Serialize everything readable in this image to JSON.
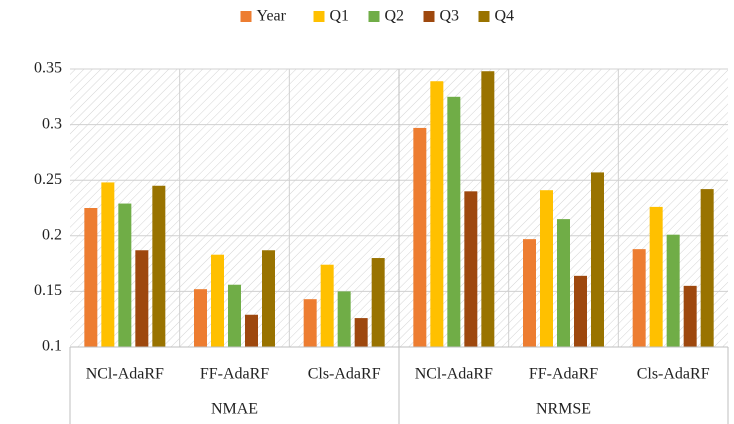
{
  "chart_data": {
    "type": "bar",
    "groups": [
      {
        "name": "NMAE",
        "categories": [
          "NCl-AdaRF",
          "FF-AdaRF",
          "Cls-AdaRF"
        ]
      },
      {
        "name": "NRMSE",
        "categories": [
          "NCl-AdaRF",
          "FF-AdaRF",
          "Cls-AdaRF"
        ]
      }
    ],
    "series": [
      {
        "name": "Year",
        "color": "#ed7d31",
        "values": [
          0.225,
          0.152,
          0.143,
          0.297,
          0.197,
          0.188
        ]
      },
      {
        "name": "Q1",
        "color": "#ffc000",
        "values": [
          0.248,
          0.183,
          0.174,
          0.339,
          0.241,
          0.226
        ]
      },
      {
        "name": "Q2",
        "color": "#70ad47",
        "values": [
          0.229,
          0.156,
          0.15,
          0.325,
          0.215,
          0.201
        ]
      },
      {
        "name": "Q3",
        "color": "#9e480e",
        "values": [
          0.187,
          0.129,
          0.126,
          0.24,
          0.164,
          0.155
        ]
      },
      {
        "name": "Q4",
        "color": "#997300",
        "values": [
          0.245,
          0.187,
          0.18,
          0.348,
          0.257,
          0.242
        ]
      }
    ],
    "ylim": [
      0.1,
      0.35
    ],
    "yticks": [
      0.1,
      0.15,
      0.2,
      0.25,
      0.3,
      0.35
    ],
    "grid": true,
    "legend": "top"
  }
}
